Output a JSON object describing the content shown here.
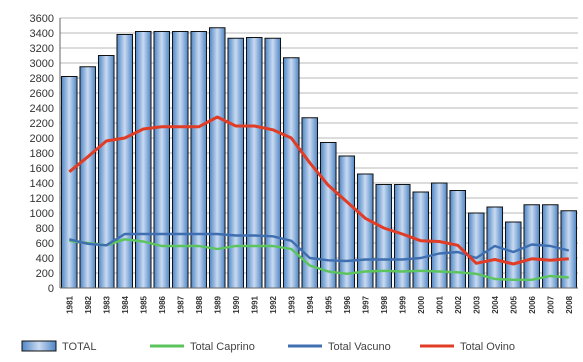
{
  "chart_data": {
    "type": "bar",
    "categories": [
      "1981",
      "1982",
      "1983",
      "1984",
      "1985",
      "1986",
      "1987",
      "1988",
      "1989",
      "1990",
      "1991",
      "1992",
      "1993",
      "1994",
      "1995",
      "1996",
      "1997",
      "1998",
      "1999",
      "2000",
      "2001",
      "2002",
      "2003",
      "2004",
      "2005",
      "2006",
      "2007",
      "2008"
    ],
    "series": [
      {
        "name": "TOTAL",
        "kind": "bar",
        "color": "#6b9ed6",
        "values": [
          2820,
          2950,
          3100,
          3380,
          3420,
          3420,
          3420,
          3420,
          3470,
          3330,
          3340,
          3330,
          3070,
          2270,
          1940,
          1760,
          1520,
          1380,
          1380,
          1280,
          1400,
          1300,
          1000,
          1080,
          880,
          1110,
          1110,
          1030
        ]
      },
      {
        "name": "Total Caprino",
        "kind": "line",
        "color": "#5cc45c",
        "values": [
          630,
          600,
          570,
          650,
          620,
          560,
          560,
          560,
          520,
          560,
          560,
          560,
          520,
          300,
          220,
          190,
          220,
          230,
          220,
          230,
          220,
          210,
          190,
          120,
          110,
          110,
          160,
          140
        ]
      },
      {
        "name": "Total Vacuno",
        "kind": "line",
        "color": "#3f6fb0",
        "values": [
          650,
          590,
          570,
          720,
          720,
          720,
          720,
          720,
          720,
          700,
          700,
          690,
          630,
          400,
          370,
          360,
          380,
          380,
          380,
          400,
          460,
          480,
          400,
          560,
          480,
          580,
          560,
          500
        ]
      },
      {
        "name": "Total Ovino",
        "kind": "line",
        "color": "#e03c26",
        "values": [
          1550,
          1750,
          1960,
          2000,
          2120,
          2150,
          2150,
          2150,
          2280,
          2160,
          2160,
          2110,
          2000,
          1670,
          1370,
          1150,
          930,
          800,
          720,
          630,
          620,
          570,
          330,
          380,
          320,
          390,
          370,
          390
        ]
      }
    ],
    "title": "",
    "xlabel": "",
    "ylabel": "",
    "ylim": [
      0,
      3600
    ],
    "yticks": [
      0,
      200,
      400,
      600,
      800,
      1000,
      1200,
      1400,
      1600,
      1800,
      2000,
      2200,
      2400,
      2600,
      2800,
      3000,
      3200,
      3400,
      3600
    ],
    "grid": true,
    "legend_position": "bottom"
  }
}
